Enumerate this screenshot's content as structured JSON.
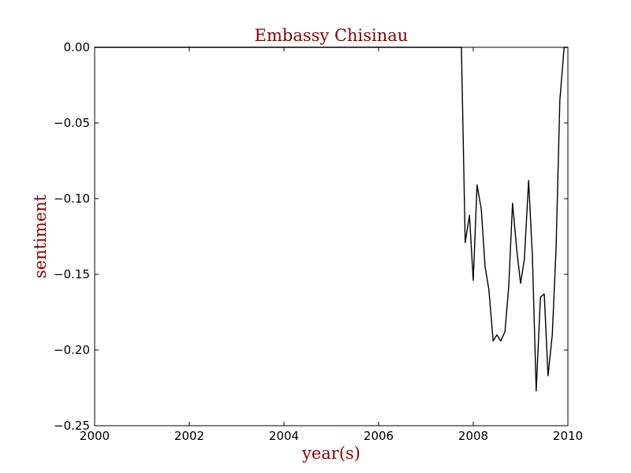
{
  "colors": {
    "label": "#8b0000",
    "line": "#000000",
    "axes": "#000000",
    "background": "#ffffff"
  },
  "chart_data": {
    "type": "line",
    "title": "Embassy Chisinau",
    "xlabel": "year(s)",
    "ylabel": "sentiment",
    "xlim": [
      2000,
      2010
    ],
    "ylim": [
      -0.25,
      0.0
    ],
    "grid": false,
    "legend": "none",
    "x_ticks": [
      2000,
      2002,
      2004,
      2006,
      2008,
      2010
    ],
    "x_tick_labels": [
      "2000",
      "2002",
      "2004",
      "2006",
      "2008",
      "2010"
    ],
    "y_ticks": [
      0.0,
      -0.05,
      -0.1,
      -0.15,
      -0.2,
      -0.25
    ],
    "y_tick_labels": [
      "0.00",
      "−0.05",
      "−0.10",
      "−0.15",
      "−0.20",
      "−0.25"
    ],
    "series": [
      {
        "x": [
          2000.0,
          2007.75,
          2007.83,
          2007.92,
          2008.0,
          2008.08,
          2008.17,
          2008.25,
          2008.33,
          2008.42,
          2008.5,
          2008.58,
          2008.67,
          2008.75,
          2008.83,
          2008.92,
          2009.0,
          2009.08,
          2009.17,
          2009.25,
          2009.33,
          2009.42,
          2009.5,
          2009.58,
          2009.67,
          2009.75,
          2009.83,
          2009.92,
          2010.0
        ],
        "y": [
          0.0,
          0.0,
          -0.129,
          -0.111,
          -0.154,
          -0.091,
          -0.107,
          -0.145,
          -0.16,
          -0.194,
          -0.19,
          -0.194,
          -0.188,
          -0.158,
          -0.103,
          -0.134,
          -0.156,
          -0.14,
          -0.088,
          -0.138,
          -0.227,
          -0.165,
          -0.163,
          -0.217,
          -0.19,
          -0.133,
          -0.035,
          0.0,
          0.0
        ]
      }
    ]
  }
}
